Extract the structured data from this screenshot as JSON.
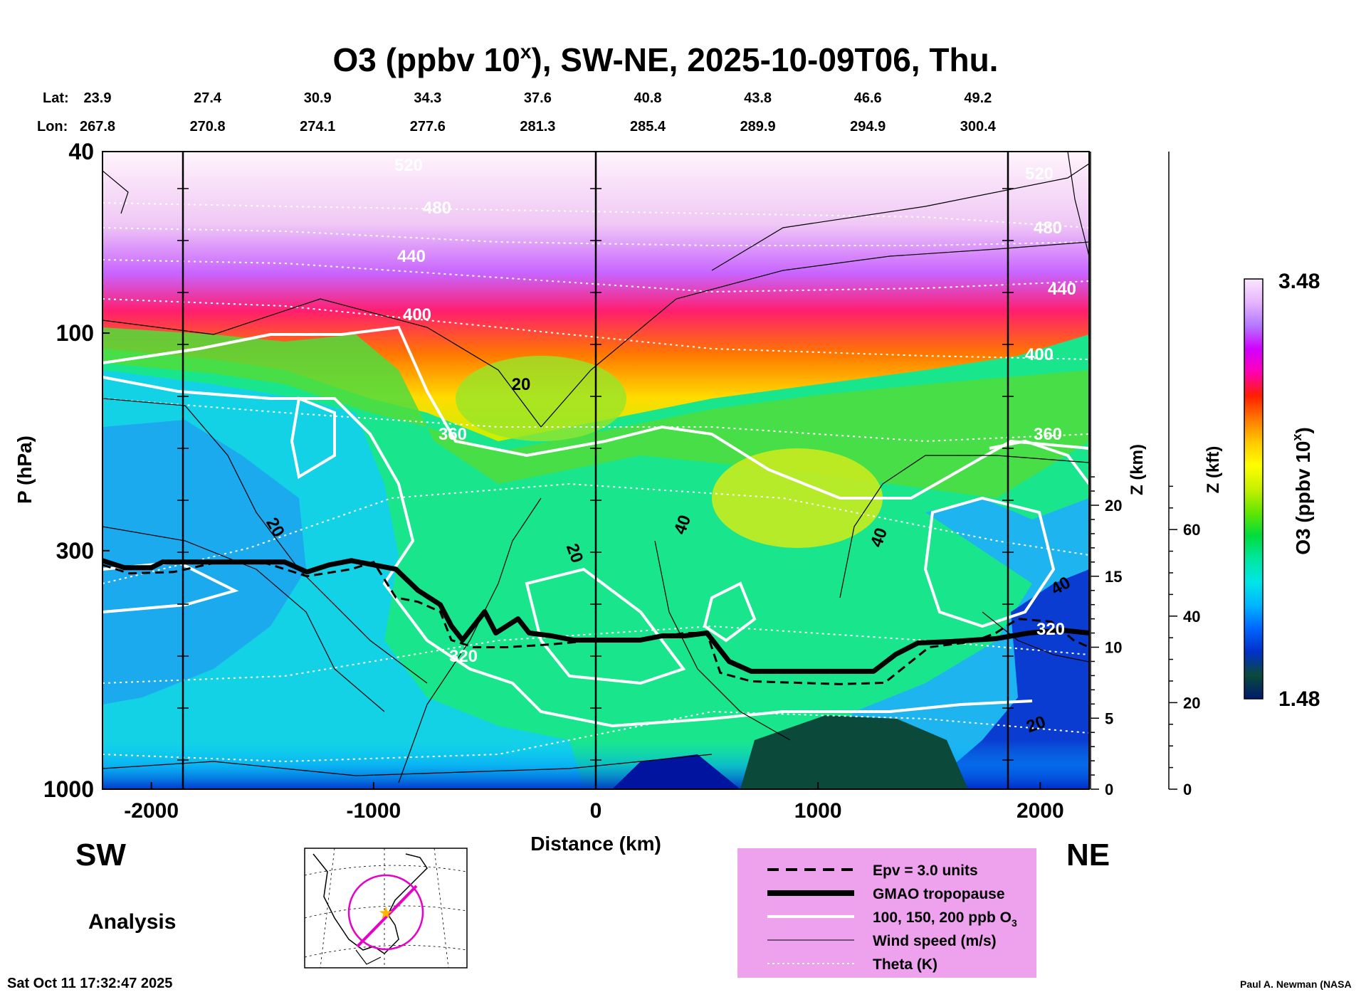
{
  "chart_data": {
    "type": "heatmap",
    "title": "O3 (ppbv 10",
    "title_sup": "x",
    "title_rest": "), SW-NE, 2025-10-09T06, Thu.",
    "lat_label": "Lat:",
    "lon_label": "Lon:",
    "lat_values": [
      "23.9",
      "27.4",
      "30.9",
      "34.3",
      "37.6",
      "40.8",
      "43.8",
      "46.6",
      "49.2"
    ],
    "lon_values": [
      "267.8",
      "270.8",
      "274.1",
      "277.6",
      "281.3",
      "285.4",
      "289.9",
      "294.9",
      "300.4"
    ],
    "xlabel": "Distance (km)",
    "xlim": [
      -2220,
      2220
    ],
    "x_ticks": [
      -2000,
      -1000,
      0,
      1000,
      2000
    ],
    "ylabel": "P (hPa)",
    "ylim": [
      1000,
      40
    ],
    "y_ticks": [
      40,
      100,
      300,
      1000
    ],
    "z_km_label": "Z (km)",
    "z_km_ticks": [
      0,
      5,
      10,
      15,
      20
    ],
    "z_kft_label": "Z (kft)",
    "z_kft_ticks": [
      0,
      20,
      40,
      60
    ],
    "colorbar_label": "O3 (ppbv 10",
    "colorbar_label_sup": "x",
    "colorbar_label_end": ")",
    "colorbar_range": [
      1.48,
      3.48
    ],
    "colorbar_max_label": "3.48",
    "colorbar_min_label": "1.48",
    "colorbar_colors": [
      "#001a6e",
      "#0b4a3a",
      "#0030c8",
      "#0064ff",
      "#00b4ff",
      "#00e6e6",
      "#00e6a0",
      "#00dc3c",
      "#64e600",
      "#c8f000",
      "#ffff00",
      "#ffc800",
      "#ff7800",
      "#ff1e00",
      "#ff00b4",
      "#d200ff",
      "#b478ff",
      "#e6b4ff",
      "#fae6ff"
    ],
    "theta_labels": [
      "520",
      "480",
      "440",
      "400",
      "360",
      "320"
    ],
    "wind_labels": [
      "20",
      "40"
    ],
    "tropopause_km": [
      [
        -2220,
        16.1
      ],
      [
        -2120,
        15.6
      ],
      [
        -2000,
        15.6
      ],
      [
        -1950,
        16.0
      ],
      [
        -1800,
        16.0
      ],
      [
        -1600,
        16.0
      ],
      [
        -1400,
        16.0
      ],
      [
        -1300,
        15.3
      ],
      [
        -1200,
        15.8
      ],
      [
        -1100,
        16.1
      ],
      [
        -1000,
        15.8
      ],
      [
        -900,
        15.5
      ],
      [
        -800,
        14.0
      ],
      [
        -700,
        13.0
      ],
      [
        -650,
        11.5
      ],
      [
        -600,
        10.5
      ],
      [
        -550,
        11.5
      ],
      [
        -500,
        12.5
      ],
      [
        -450,
        11.0
      ],
      [
        -400,
        11.5
      ],
      [
        -350,
        12.0
      ],
      [
        -300,
        11.0
      ],
      [
        -200,
        10.8
      ],
      [
        -100,
        10.5
      ],
      [
        0,
        10.5
      ],
      [
        100,
        10.5
      ],
      [
        200,
        10.5
      ],
      [
        300,
        10.8
      ],
      [
        400,
        10.8
      ],
      [
        500,
        11.0
      ],
      [
        600,
        9.0
      ],
      [
        700,
        8.3
      ],
      [
        900,
        8.3
      ],
      [
        1100,
        8.3
      ],
      [
        1250,
        8.3
      ],
      [
        1350,
        9.5
      ],
      [
        1450,
        10.3
      ],
      [
        1600,
        10.4
      ],
      [
        1800,
        10.6
      ],
      [
        1950,
        11.0
      ],
      [
        2100,
        11.2
      ],
      [
        2220,
        11.0
      ]
    ],
    "epv_km": [
      [
        -2220,
        15.8
      ],
      [
        -2100,
        15.2
      ],
      [
        -1900,
        15.3
      ],
      [
        -1700,
        16.0
      ],
      [
        -1500,
        16.0
      ],
      [
        -1300,
        15.0
      ],
      [
        -1100,
        15.5
      ],
      [
        -1000,
        16.0
      ],
      [
        -900,
        13.5
      ],
      [
        -800,
        13.2
      ],
      [
        -700,
        12.5
      ],
      [
        -650,
        10.5
      ],
      [
        -550,
        10.0
      ],
      [
        -400,
        10.0
      ],
      [
        -200,
        10.2
      ],
      [
        0,
        10.5
      ],
      [
        200,
        10.5
      ],
      [
        400,
        11.0
      ],
      [
        500,
        11.0
      ],
      [
        560,
        8.2
      ],
      [
        700,
        7.6
      ],
      [
        900,
        7.5
      ],
      [
        1100,
        7.4
      ],
      [
        1300,
        7.5
      ],
      [
        1500,
        10.0
      ],
      [
        1700,
        10.4
      ],
      [
        1800,
        11.0
      ],
      [
        1900,
        12.0
      ],
      [
        2050,
        11.8
      ],
      [
        2150,
        10.5
      ],
      [
        2220,
        10.0
      ]
    ],
    "legend": [
      {
        "label": "Epv = 3.0 units",
        "style": "dashed"
      },
      {
        "label": "GMAO tropopause",
        "style": "thick"
      },
      {
        "label": "100, 150, 200 ppb O",
        "sub": "3",
        "style": "white"
      },
      {
        "label": "Wind speed (m/s)",
        "style": "thin"
      },
      {
        "label": "Theta (K)",
        "style": "dotted"
      }
    ],
    "direction_left": "SW",
    "direction_right": "NE",
    "analysis_label": "Analysis",
    "timestamp": "Sat Oct 11 17:32:47 2025",
    "credit": "Paul A. Newman (NASA"
  }
}
